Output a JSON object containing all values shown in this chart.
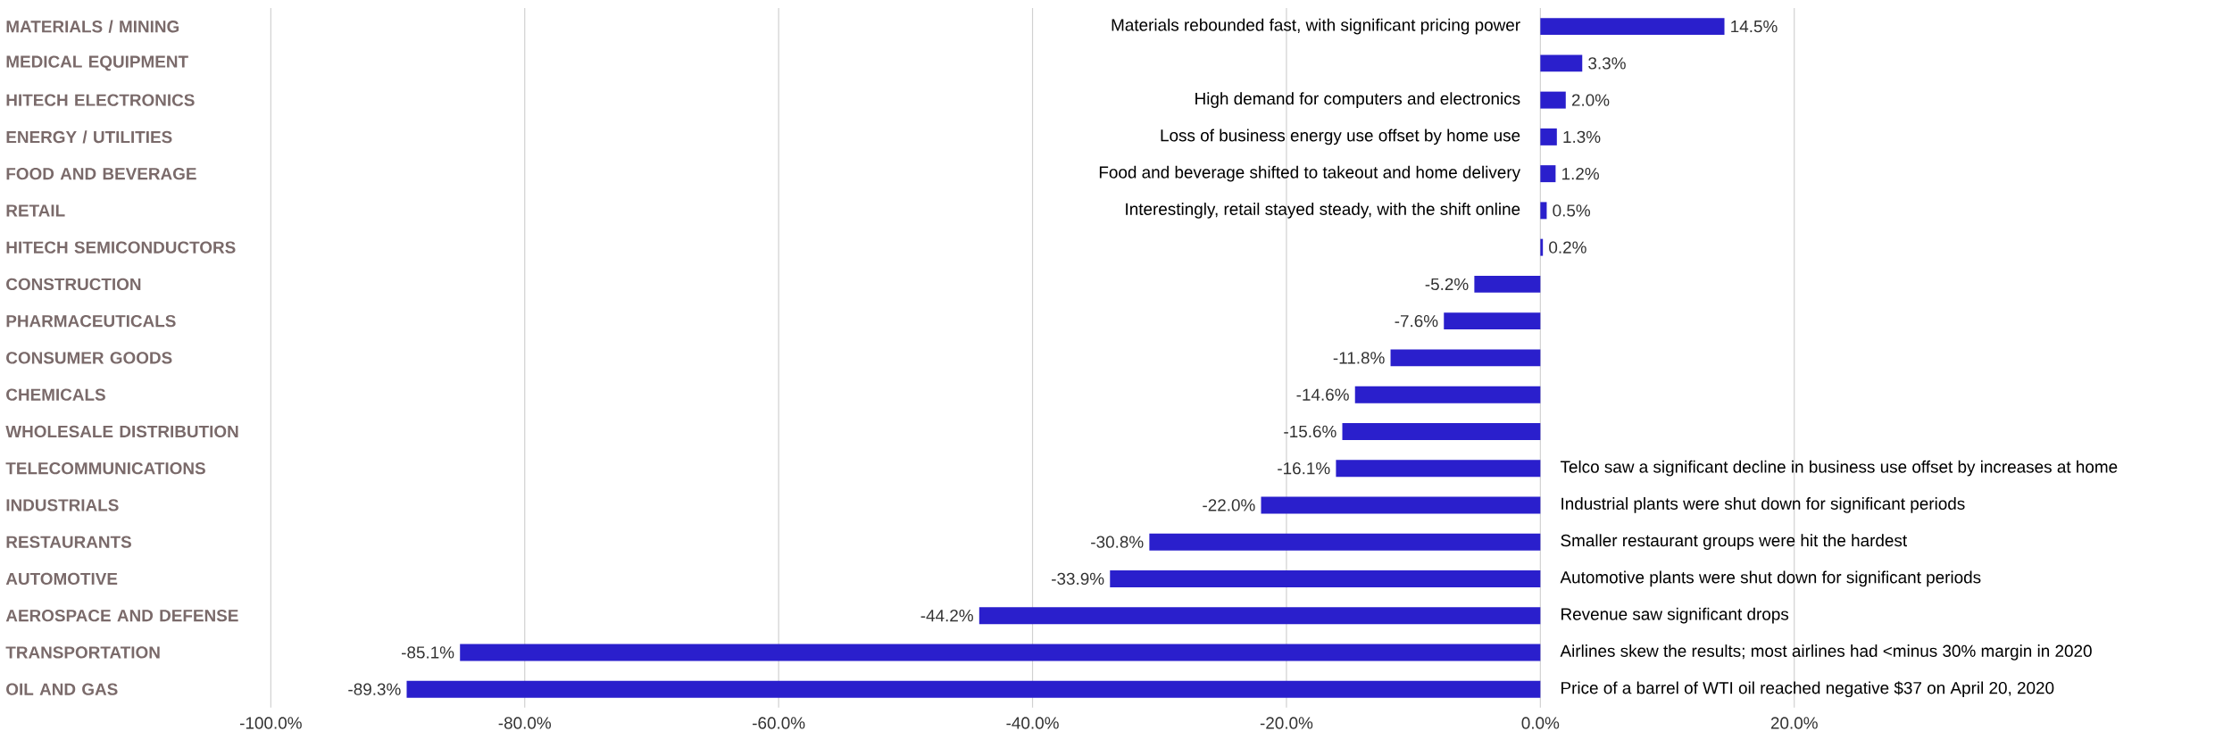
{
  "chart_data": {
    "type": "bar",
    "orientation": "horizontal",
    "categories": [
      "MATERIALS / MINING",
      "MEDICAL EQUIPMENT",
      "HITECH ELECTRONICS",
      "ENERGY / UTILITIES",
      "FOOD AND BEVERAGE",
      "RETAIL",
      "HITECH SEMICONDUCTORS",
      "CONSTRUCTION",
      "PHARMACEUTICALS",
      "CONSUMER GOODS",
      "CHEMICALS",
      "WHOLESALE DISTRIBUTION",
      "TELECOMMUNICATIONS",
      "INDUSTRIALS",
      "RESTAURANTS",
      "AUTOMOTIVE",
      "AEROSPACE AND DEFENSE",
      "TRANSPORTATION",
      "OIL AND GAS"
    ],
    "values": [
      14.5,
      3.3,
      2.0,
      1.3,
      1.2,
      0.5,
      0.2,
      -5.2,
      -7.6,
      -11.8,
      -14.6,
      -15.6,
      -16.1,
      -22.0,
      -30.8,
      -33.9,
      -44.2,
      -85.1,
      -89.3
    ],
    "value_labels": [
      "14.5%",
      "3.3%",
      "2.0%",
      "1.3%",
      "1.2%",
      "0.5%",
      "0.2%",
      "-5.2%",
      "-7.6%",
      "-11.8%",
      "-14.6%",
      "-15.6%",
      "-16.1%",
      "-22.0%",
      "-30.8%",
      "-33.9%",
      "-44.2%",
      "-85.1%",
      "-89.3%"
    ],
    "color": "#2a1fcc",
    "xlim": [
      -100,
      20
    ],
    "xticks": [
      {
        "value": -100,
        "label": "-100.0%"
      },
      {
        "value": -80,
        "label": "-80.0%"
      },
      {
        "value": -60,
        "label": "-60.0%"
      },
      {
        "value": -40,
        "label": "-40.0%"
      },
      {
        "value": -20,
        "label": "-20.0%"
      },
      {
        "value": 0,
        "label": "0.0%"
      },
      {
        "value": 20,
        "label": "20.0%"
      }
    ],
    "grid": "x",
    "annotations": [
      "Materials rebounded fast, with significant pricing power",
      "High demand for computers and electronics",
      "Loss of business energy use offset by home use",
      "Food and beverage shifted to takeout and home delivery",
      "Interestingly, retail stayed steady, with the shift online",
      "Telco saw a significant decline in business use offset by increases at home",
      "Industrial plants were shut down for significant periods",
      "Smaller restaurant groups were hit the hardest",
      "Automotive plants were shut down for significant periods",
      "Revenue saw significant drops",
      "Airlines skew the results; most airlines had <minus 30% margin in 2020",
      "Price of a barrel of WTI oil reached negative $37 on April 20, 2020"
    ]
  }
}
